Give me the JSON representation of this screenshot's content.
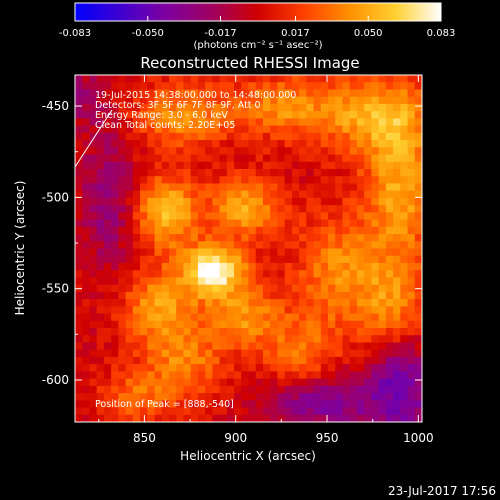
{
  "chart_data": {
    "type": "heatmap",
    "title": "Reconstructed RHESSI Image",
    "xlabel": "Heliocentric X (arcsec)",
    "ylabel": "Heliocentric Y (arcsec)",
    "xlim": [
      812,
      1002
    ],
    "ylim": [
      -623,
      -433
    ],
    "xticks": [
      850,
      900,
      950,
      1000
    ],
    "yticks": [
      -450,
      -500,
      -550,
      -600
    ],
    "colorbar": {
      "min": -0.083,
      "max": 0.083,
      "ticks": [
        "-0.083",
        "-0.050",
        "-0.017",
        "0.017",
        "0.050",
        "0.083"
      ],
      "tick_values": [
        -0.083,
        -0.05,
        -0.017,
        0.017,
        0.05,
        0.083
      ],
      "unit_label": "(photons cm⁻² s⁻¹ asec⁻²)",
      "colormap": [
        "#0000ff",
        "#4000d0",
        "#7f00a0",
        "#a00060",
        "#d00000",
        "#ff4000",
        "#ff9000",
        "#ffd030",
        "#ffffff"
      ]
    },
    "info_lines": [
      "19-Jul-2015 14:38:00.000 to 14:48:00.000",
      "Detectors: 3F 5F 6F 7F 8F 9F, Att 0",
      "Energy Range: 3.0 - 6.0 keV",
      "Clean    Total counts: 2.20E+05"
    ],
    "peak_text": "Position of Peak = [888,-540]",
    "peak": {
      "x": 888,
      "y": -540,
      "value": 0.083
    },
    "features": [
      {
        "x": 888,
        "y": -540,
        "amp": 0.08,
        "sx": 12,
        "sy": 10
      },
      {
        "x": 862,
        "y": -508,
        "amp": 0.056,
        "sx": 12,
        "sy": 14
      },
      {
        "x": 905,
        "y": -505,
        "amp": 0.048,
        "sx": 14,
        "sy": 12
      },
      {
        "x": 858,
        "y": -560,
        "amp": 0.045,
        "sx": 14,
        "sy": 14
      },
      {
        "x": 905,
        "y": -565,
        "amp": 0.04,
        "sx": 14,
        "sy": 12
      },
      {
        "x": 872,
        "y": -590,
        "amp": 0.035,
        "sx": 16,
        "sy": 14
      },
      {
        "x": 870,
        "y": -455,
        "amp": 0.042,
        "sx": 18,
        "sy": 12
      },
      {
        "x": 925,
        "y": -450,
        "amp": 0.038,
        "sx": 20,
        "sy": 12
      },
      {
        "x": 975,
        "y": -455,
        "amp": 0.045,
        "sx": 22,
        "sy": 14
      },
      {
        "x": 990,
        "y": -495,
        "amp": 0.048,
        "sx": 14,
        "sy": 30
      },
      {
        "x": 955,
        "y": -540,
        "amp": 0.038,
        "sx": 16,
        "sy": 22
      },
      {
        "x": 985,
        "y": -560,
        "amp": 0.036,
        "sx": 14,
        "sy": 18
      },
      {
        "x": 935,
        "y": -585,
        "amp": 0.032,
        "sx": 14,
        "sy": 14
      },
      {
        "x": 845,
        "y": -610,
        "amp": 0.03,
        "sx": 14,
        "sy": 10
      },
      {
        "x": 990,
        "y": -605,
        "amp": -0.045,
        "sx": 14,
        "sy": 20
      },
      {
        "x": 830,
        "y": -500,
        "amp": -0.028,
        "sx": 10,
        "sy": 26
      },
      {
        "x": 945,
        "y": -612,
        "amp": -0.04,
        "sx": 20,
        "sy": 10
      },
      {
        "x": 815,
        "y": -445,
        "amp": -0.02,
        "sx": 10,
        "sy": 10
      }
    ],
    "grid": false
  },
  "footer": {
    "timestamp": "23-Jul-2017 17:56"
  }
}
